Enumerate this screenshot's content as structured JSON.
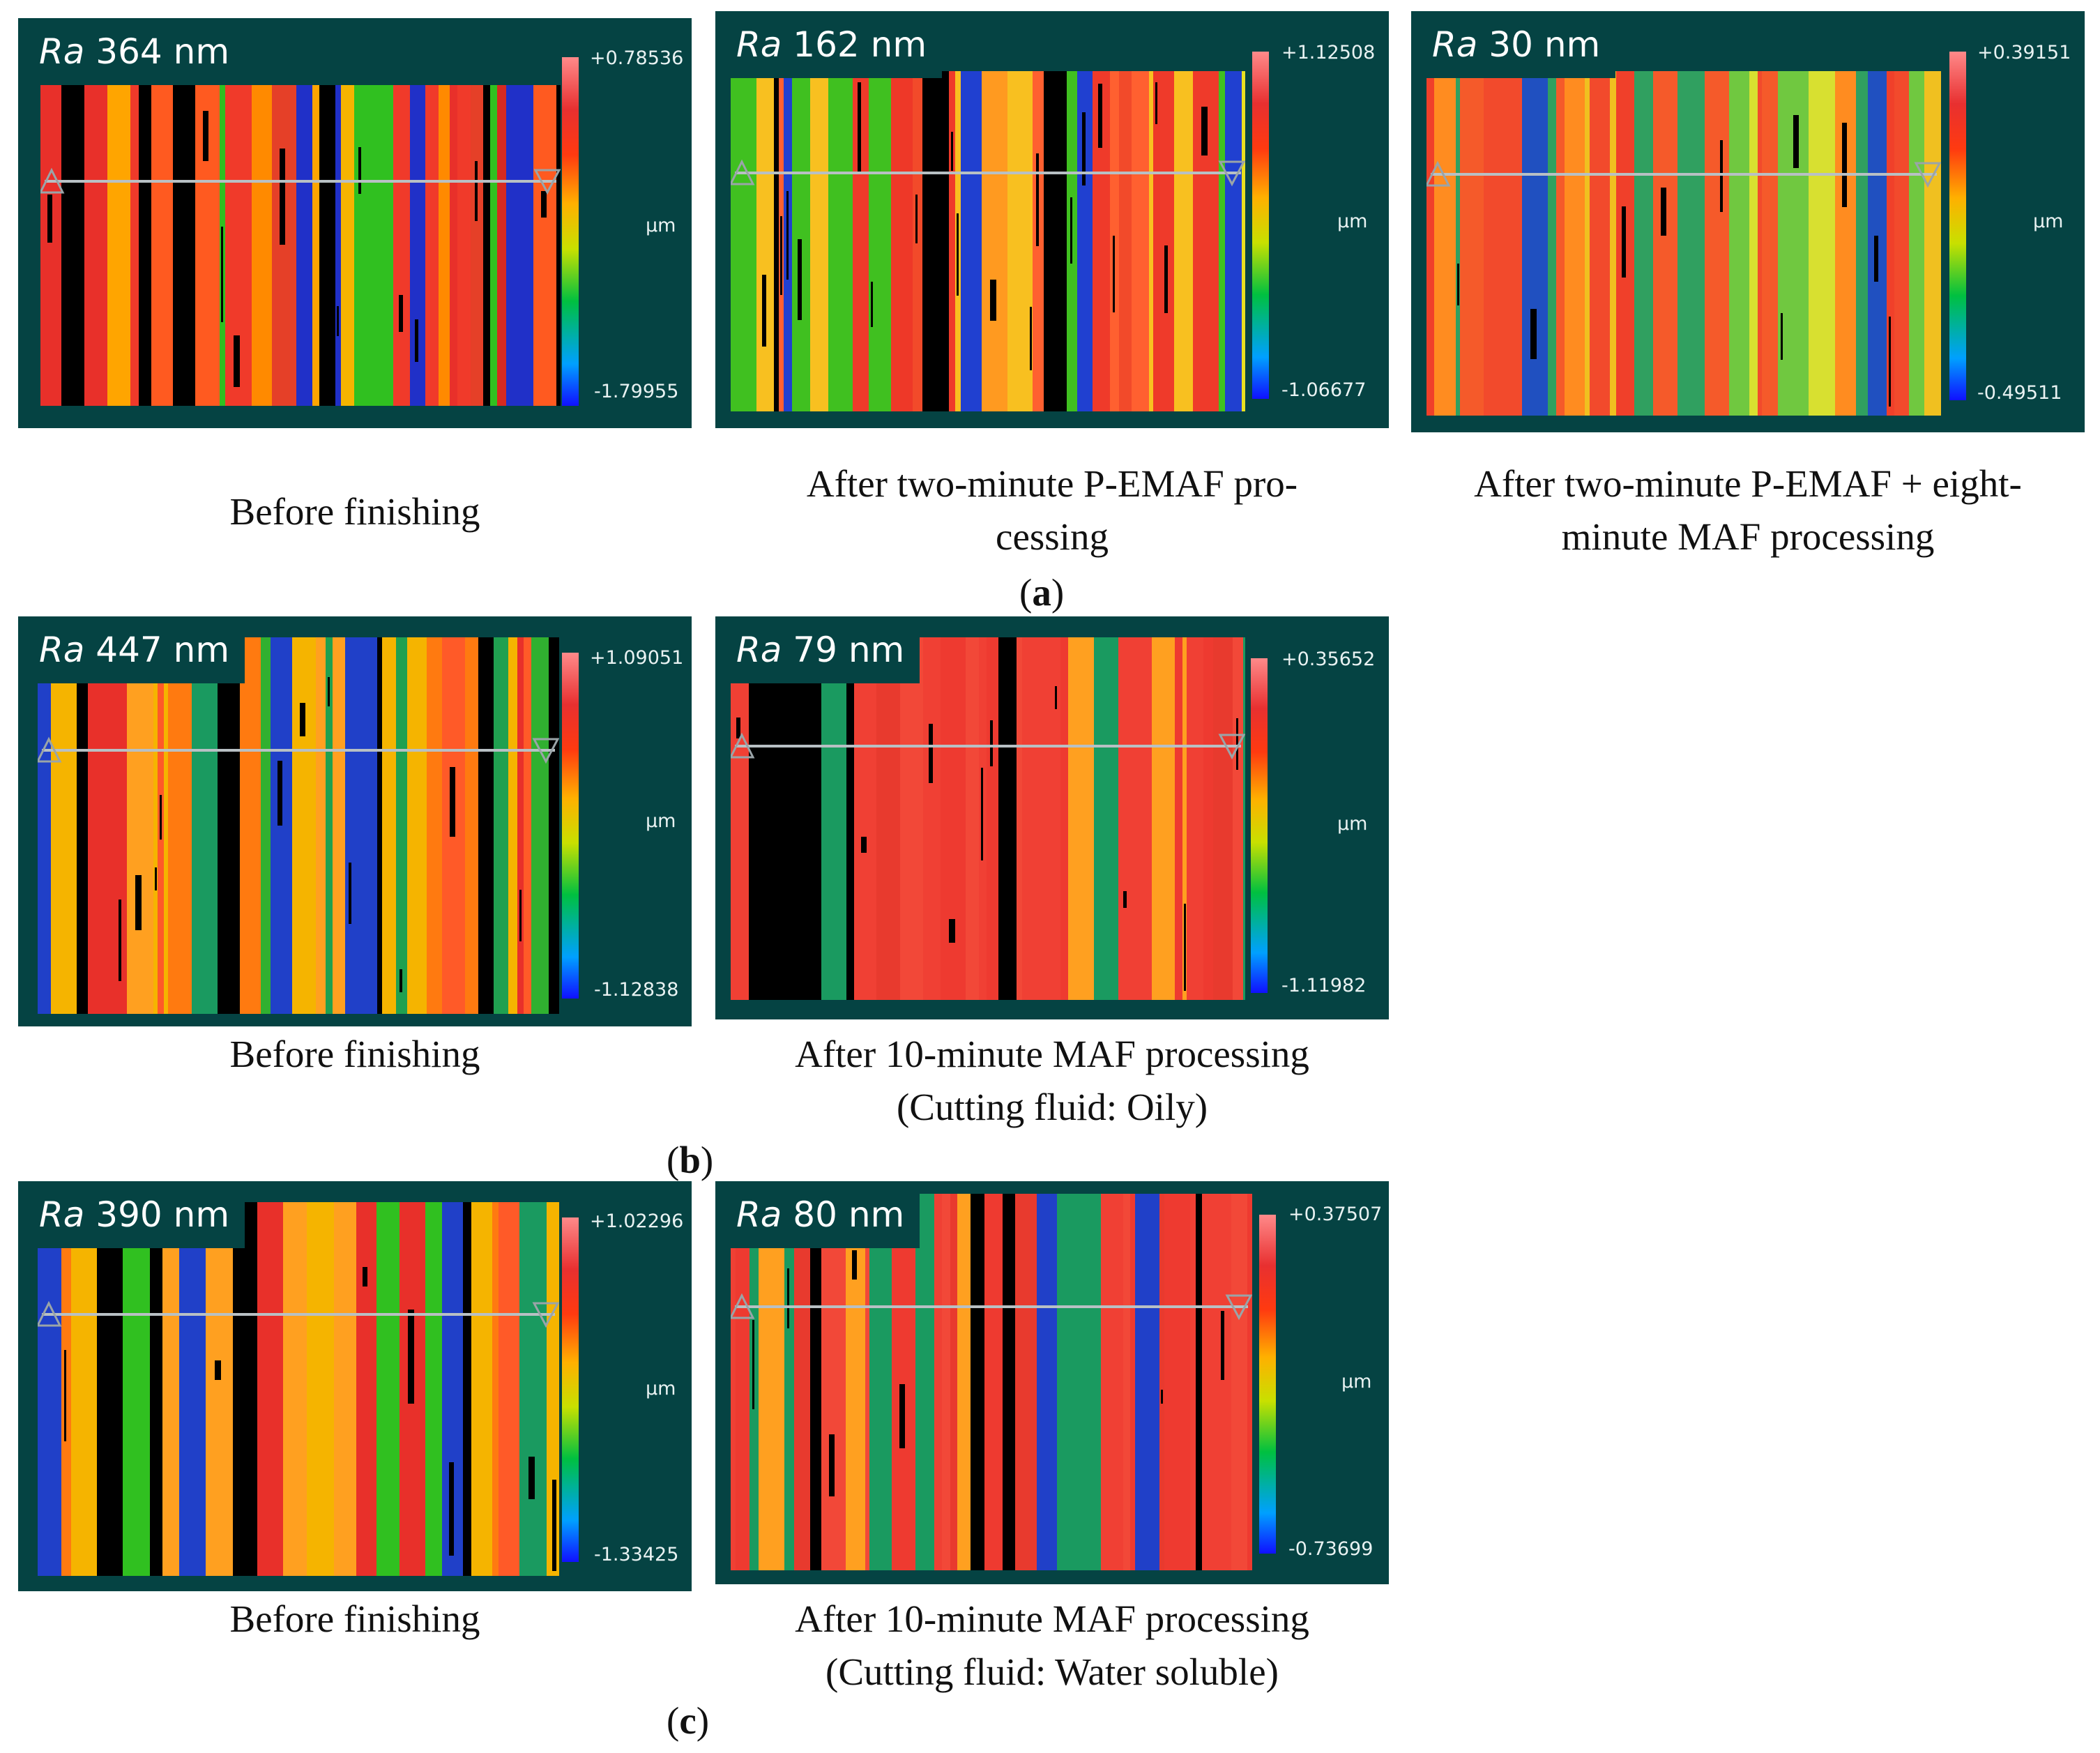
{
  "unit_label": "µm",
  "colors": {
    "panel_bg": "#054343"
  },
  "rows": [
    {
      "tag": "a",
      "panels": [
        {
          "ra_label": "Ra",
          "ra_value": "364 nm",
          "scale_max": "+0.78536",
          "scale_min": "-1.79955",
          "caption_lines": [
            "Before finishing"
          ],
          "palette": [
            "#e8302a",
            "#f03a2a",
            "#ff8a00",
            "#f5b400",
            "#000000",
            "#1fa030",
            "#2030c8",
            "#d62a20",
            "#e54028",
            "#ffa500",
            "#30c020",
            "#ff5a20"
          ]
        },
        {
          "ra_label": "Ra",
          "ra_value": "162 nm",
          "scale_max": "+1.12508",
          "scale_min": "-1.06677",
          "caption_lines": [
            "After two-minute P-EMAF pro-",
            "cessing"
          ],
          "palette": [
            "#ef3a2a",
            "#f24a2a",
            "#ff9a20",
            "#f8c020",
            "#e8e020",
            "#40c020",
            "#000000",
            "#2040d0",
            "#ff6030",
            "#ee3828"
          ]
        },
        {
          "ra_label": "Ra",
          "ra_value": "30 nm",
          "scale_max": "+0.39151",
          "scale_min": "-0.49511",
          "caption_lines": [
            "After two-minute P-EMAF + eight-",
            "minute MAF processing"
          ],
          "palette": [
            "#f0402a",
            "#f55a2a",
            "#ff8c20",
            "#f0c020",
            "#d8e030",
            "#70c840",
            "#30a060",
            "#2050c0",
            "#f24a2c"
          ]
        }
      ]
    },
    {
      "tag": "b",
      "panels": [
        {
          "ra_label": "Ra",
          "ra_value": "447 nm",
          "scale_max": "+1.09051",
          "scale_min": "-1.12838",
          "caption_lines": [
            "Before finishing"
          ],
          "palette": [
            "#e8302a",
            "#ff7a10",
            "#f5b400",
            "#30b030",
            "#1a9a60",
            "#2040c8",
            "#000000",
            "#ff5a28",
            "#ffa020",
            "#20a050"
          ]
        },
        {
          "ra_label": "Ra",
          "ra_value": "79 nm",
          "scale_max": "+0.35652",
          "scale_min": "-1.11982",
          "caption_lines": [
            "After 10-minute MAF processing",
            "(Cutting fluid: Oily)"
          ],
          "palette": [
            "#f04034",
            "#ee3a30",
            "#f24838",
            "#e83a2e",
            "#000000",
            "#1a9a60",
            "#f04034",
            "#ffa020"
          ]
        }
      ]
    },
    {
      "tag": "c",
      "panels": [
        {
          "ra_label": "Ra",
          "ra_value": "390 nm",
          "scale_max": "+1.02296",
          "scale_min": "-1.33425",
          "caption_lines": [
            "Before finishing"
          ],
          "palette": [
            "#e8302a",
            "#ff7a10",
            "#f5b400",
            "#30c020",
            "#1a9a60",
            "#2040c8",
            "#000000",
            "#ff5a28",
            "#ffa020",
            "#e0e020"
          ]
        },
        {
          "ra_label": "Ra",
          "ra_value": "80 nm",
          "scale_max": "+0.37507",
          "scale_min": "-0.73699",
          "caption_lines": [
            "After 10-minute MAF processing",
            "(Cutting fluid: Water soluble)"
          ],
          "palette": [
            "#f04034",
            "#ee3a30",
            "#e83a2e",
            "#f24838",
            "#1a9a60",
            "#2040c8",
            "#000000",
            "#ffa020",
            "#f04034"
          ]
        }
      ]
    }
  ]
}
